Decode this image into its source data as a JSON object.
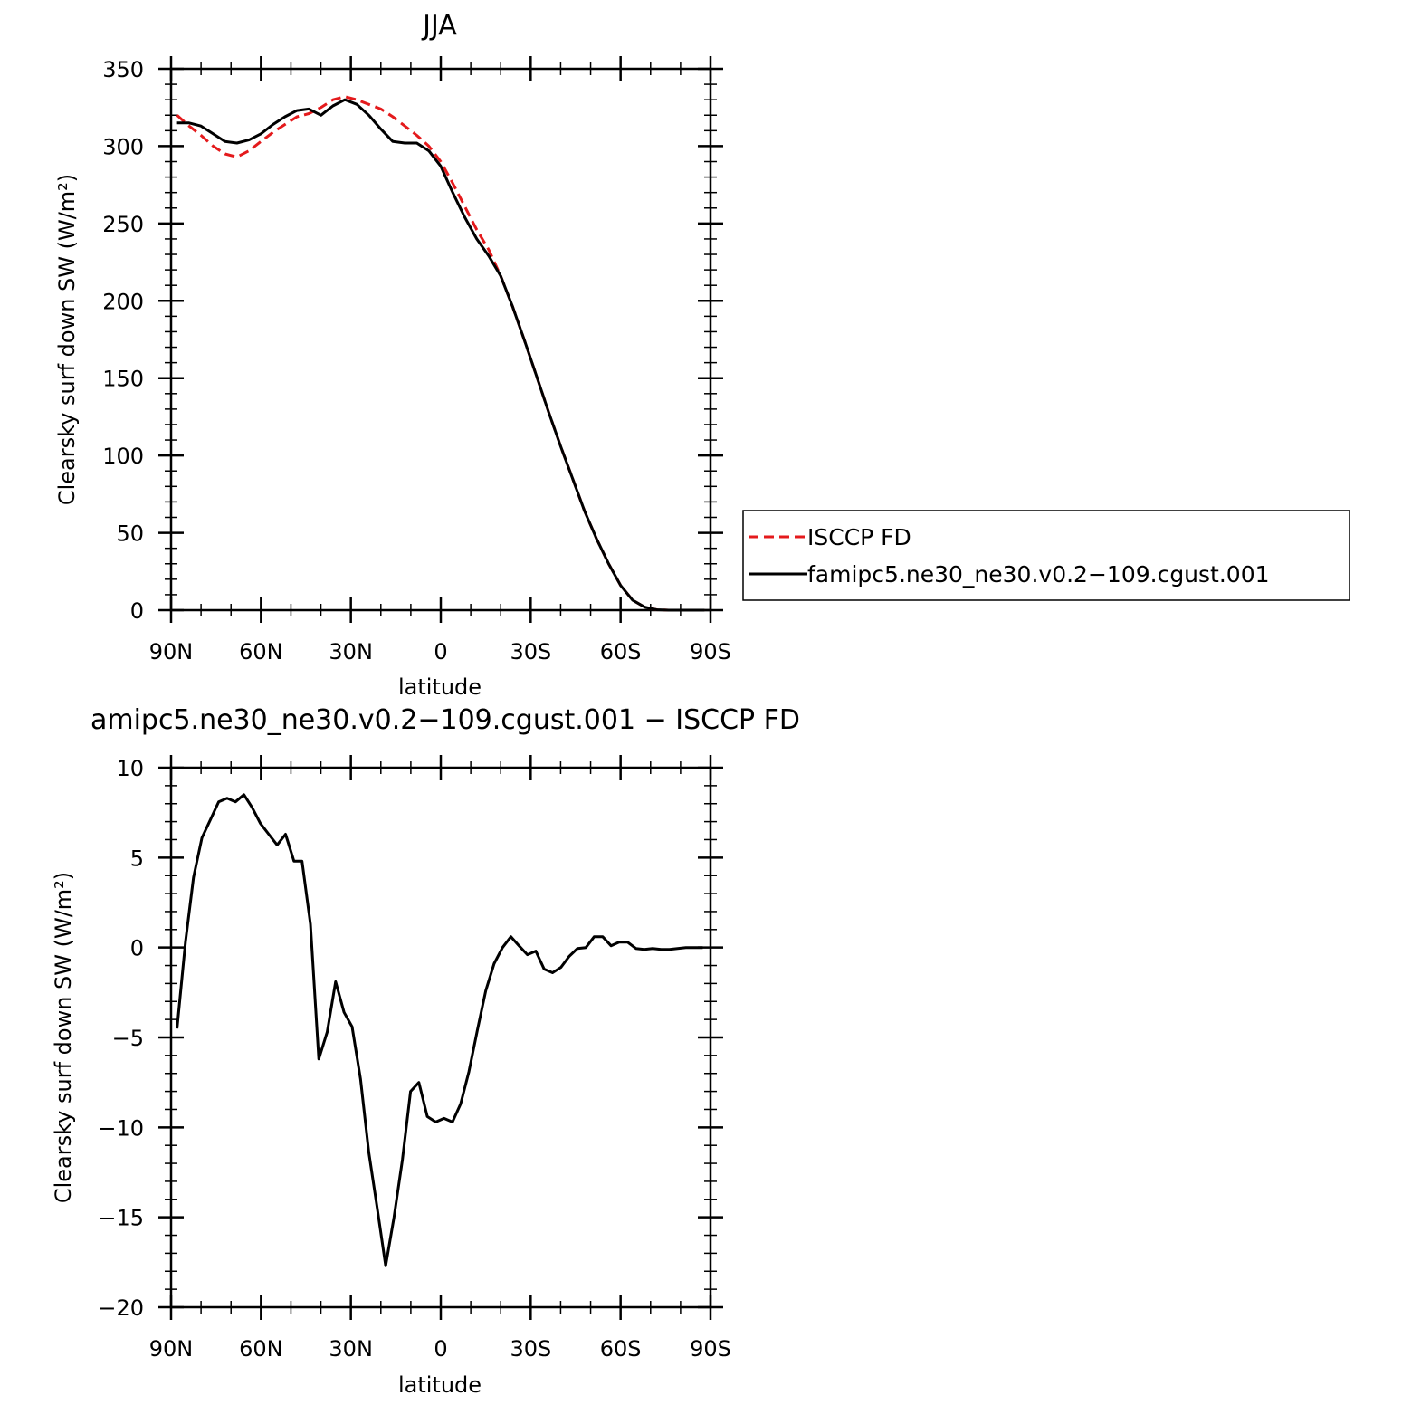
{
  "chart_data": [
    {
      "type": "line",
      "title": "JJA",
      "xlabel": "latitude",
      "ylabel": "Clearsky surf down SW (W/m²)",
      "xlim": [
        90,
        -90
      ],
      "ylim": [
        0,
        350
      ],
      "x_ticks": [
        90,
        60,
        30,
        0,
        -30,
        -60,
        -90
      ],
      "x_tick_labels": [
        "90N",
        "60N",
        "30N",
        "0",
        "30S",
        "60S",
        "90S"
      ],
      "y_ticks": [
        0,
        50,
        100,
        150,
        200,
        250,
        300,
        350
      ],
      "y_tick_labels": [
        "0",
        "50",
        "100",
        "150",
        "200",
        "250",
        "300",
        "350"
      ],
      "grid": false,
      "legend": {
        "placement": "right",
        "entries": [
          "ISCCP FD",
          "famipc5.ne30_ne30.v0.2−109.cgust.001"
        ]
      },
      "series": [
        {
          "name": "ISCCP FD",
          "color": "#e41a1c",
          "style": "dashed",
          "x": [
            88,
            84,
            80,
            76,
            72,
            68,
            64,
            60,
            56,
            52,
            48,
            44,
            40,
            36,
            32,
            28,
            24,
            20,
            16,
            12,
            8,
            4,
            0,
            -4,
            -8,
            -12,
            -16,
            -20,
            -24,
            -28,
            -32,
            -36,
            -40,
            -44,
            -48,
            -52,
            -56,
            -60,
            -64,
            -68,
            -72,
            -76,
            -80,
            -84,
            -88
          ],
          "values": [
            320,
            313,
            307,
            300,
            295,
            293,
            297,
            303,
            309,
            314,
            319,
            321,
            325,
            330,
            332,
            330,
            327,
            324,
            319,
            313,
            307,
            300,
            290,
            276,
            261,
            246,
            233,
            216,
            196,
            174,
            151,
            128,
            106,
            85,
            64,
            46,
            30,
            16,
            6.5,
            2,
            0.3,
            0,
            0,
            0,
            0
          ]
        },
        {
          "name": "famipc5.ne30_ne30.v0.2−109.cgust.001",
          "color": "#000000",
          "style": "solid",
          "x": [
            88,
            84,
            80,
            76,
            72,
            68,
            64,
            60,
            56,
            52,
            48,
            44,
            40,
            36,
            32,
            28,
            24,
            20,
            16,
            12,
            8,
            4,
            0,
            -4,
            -8,
            -12,
            -16,
            -20,
            -24,
            -28,
            -32,
            -36,
            -40,
            -44,
            -48,
            -52,
            -56,
            -60,
            -64,
            -68,
            -72,
            -76,
            -80,
            -84,
            -88
          ],
          "values": [
            315,
            315,
            313,
            308,
            303,
            302,
            304,
            308,
            314,
            319,
            323,
            324,
            320,
            326,
            330,
            327,
            320,
            311,
            303,
            302,
            302,
            297,
            287,
            270,
            254,
            240,
            229,
            216,
            196,
            174,
            151,
            128,
            106,
            85,
            64,
            46,
            30,
            16,
            6.5,
            2,
            0.3,
            0,
            0,
            0,
            0
          ]
        }
      ]
    },
    {
      "type": "line",
      "title": "amipc5.ne30_ne30.v0.2−109.cgust.001 − ISCCP FD",
      "xlabel": "latitude",
      "ylabel": "Clearsky surf down SW (W/m²)",
      "xlim": [
        90,
        -90
      ],
      "ylim": [
        -20,
        10
      ],
      "x_ticks": [
        90,
        60,
        30,
        0,
        -30,
        -60,
        -90
      ],
      "x_tick_labels": [
        "90N",
        "60N",
        "30N",
        "0",
        "30S",
        "60S",
        "90S"
      ],
      "y_ticks": [
        -20,
        -15,
        -10,
        -5,
        0,
        5,
        10
      ],
      "y_tick_labels": [
        "−20",
        "−15",
        "−10",
        "−5",
        "0",
        "5",
        "10"
      ],
      "grid": false,
      "series": [
        {
          "color": "#000000",
          "style": "solid",
          "x": [
            88,
            85.2,
            82.5,
            79.7,
            76.9,
            74.1,
            71.3,
            68.5,
            65.7,
            63,
            60.2,
            57.4,
            54.6,
            51.8,
            49,
            46.3,
            43.5,
            40.7,
            37.9,
            35.1,
            32.3,
            29.6,
            26.8,
            24,
            21.2,
            18.4,
            15.6,
            12.8,
            10.1,
            7.3,
            4.5,
            1.7,
            -1.1,
            -3.9,
            -6.6,
            -9.4,
            -12.2,
            -15,
            -17.8,
            -20.6,
            -23.4,
            -26.1,
            -28.9,
            -31.7,
            -34.5,
            -37.3,
            -40.1,
            -42.8,
            -45.6,
            -48.4,
            -51.2,
            -54,
            -56.8,
            -59.5,
            -62.3,
            -65.1,
            -67.9,
            -70.7,
            -73.5,
            -76.3,
            -79,
            -81.8,
            -84.6,
            -87.4
          ],
          "values": [
            -4.5,
            0.3,
            3.9,
            6.1,
            7.1,
            8.1,
            8.3,
            8.1,
            8.5,
            7.8,
            6.9,
            6.3,
            5.7,
            6.3,
            4.8,
            4.8,
            1.3,
            -6.2,
            -4.7,
            -1.9,
            -3.6,
            -4.4,
            -7.3,
            -11.4,
            -14.5,
            -17.7,
            -15,
            -11.8,
            -8,
            -7.5,
            -9.4,
            -9.7,
            -9.5,
            -9.7,
            -8.7,
            -6.9,
            -4.6,
            -2.4,
            -0.9,
            0,
            0.6,
            0.1,
            -0.4,
            -0.2,
            -1.2,
            -1.4,
            -1.1,
            -0.5,
            -0.05,
            0,
            0.6,
            0.6,
            0.1,
            0.3,
            0.3,
            -0.05,
            -0.1,
            -0.05,
            -0.1,
            -0.1,
            -0.05,
            0,
            0,
            0
          ]
        }
      ]
    }
  ]
}
